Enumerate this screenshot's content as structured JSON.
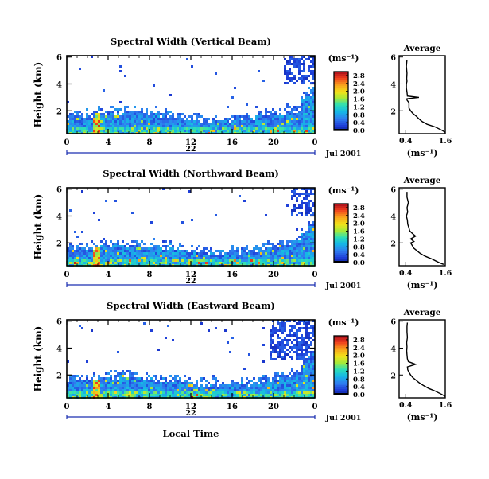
{
  "figure": {
    "xaxis_label": "Local Time",
    "date_label": "Jul 2001",
    "day_label": "22"
  },
  "chart_data": [
    {
      "type": "heatmap",
      "title": "Spectral Width (Vertical Beam)",
      "ylabel": "Height (km)",
      "x_ticks": [
        "0",
        "4",
        "8",
        "12",
        "16",
        "20",
        "0"
      ],
      "y_ticks": [
        "2",
        "4",
        "6"
      ],
      "xlim": [
        0,
        24
      ],
      "ylim": [
        0.3,
        6.1
      ],
      "colorbar": {
        "unit_label": "(ms⁻¹)",
        "ticks": [
          "0.0",
          "0.4",
          "0.8",
          "1.2",
          "1.6",
          "2.0",
          "2.4",
          "2.8"
        ],
        "range": [
          0,
          3.0
        ]
      },
      "average_profile": {
        "title": "Average",
        "xlabel": "(ms⁻¹)",
        "x_ticks": [
          "0.4",
          "1.6"
        ],
        "y_ticks": [
          "2",
          "4",
          "6"
        ],
        "xlim": [
          0.2,
          1.6
        ],
        "ylim": [
          0.3,
          6.1
        ],
        "x": [
          1.6,
          1.5,
          1.3,
          1.05,
          0.9,
          0.8,
          0.72,
          0.62,
          0.55,
          0.5,
          0.5,
          0.44,
          0.44,
          0.8,
          0.45,
          0.44,
          0.42,
          0.42,
          0.44,
          0.43,
          0.44,
          0.42,
          0.44
        ],
        "y": [
          0.4,
          0.55,
          0.8,
          1.0,
          1.2,
          1.4,
          1.6,
          1.8,
          2.0,
          2.2,
          2.6,
          2.8,
          2.9,
          3.0,
          3.1,
          3.4,
          3.7,
          4.0,
          4.2,
          4.4,
          4.8,
          5.3,
          5.8
        ]
      },
      "upper_cluster": {
        "x_start": 20.8,
        "x_end": 24,
        "y_start": 4.1,
        "y_end": 6.1
      }
    },
    {
      "type": "heatmap",
      "title": "Spectral Width (Northward Beam)",
      "ylabel": "Height (km)",
      "x_ticks": [
        "0",
        "4",
        "8",
        "12",
        "16",
        "20",
        "0"
      ],
      "y_ticks": [
        "2",
        "4",
        "6"
      ],
      "xlim": [
        0,
        24
      ],
      "ylim": [
        0.3,
        6.1
      ],
      "colorbar": {
        "unit_label": "(ms⁻¹)",
        "ticks": [
          "0.0",
          "0.4",
          "0.8",
          "1.2",
          "1.6",
          "2.0",
          "2.4",
          "2.8"
        ],
        "range": [
          0,
          3.0
        ]
      },
      "average_profile": {
        "title": "Average",
        "xlabel": "(ms⁻¹)",
        "x_ticks": [
          "0.4",
          "1.6"
        ],
        "y_ticks": [
          "2",
          "4",
          "6"
        ],
        "xlim": [
          0.2,
          1.6
        ],
        "ylim": [
          0.3,
          6.1
        ],
        "x": [
          1.55,
          1.4,
          1.2,
          1.0,
          0.85,
          0.75,
          0.65,
          0.6,
          0.55,
          0.65,
          0.55,
          0.7,
          0.6,
          0.52,
          0.5,
          0.46,
          0.45,
          0.42,
          0.46,
          0.44,
          0.48,
          0.44,
          0.44
        ],
        "y": [
          0.4,
          0.55,
          0.8,
          1.0,
          1.2,
          1.4,
          1.6,
          1.8,
          2.0,
          2.1,
          2.3,
          2.5,
          2.7,
          2.9,
          3.1,
          3.4,
          3.7,
          4.0,
          4.3,
          4.6,
          5.0,
          5.4,
          5.8
        ]
      },
      "upper_cluster": {
        "x_start": 21.5,
        "x_end": 24,
        "y_start": 4.0,
        "y_end": 6.1
      }
    },
    {
      "type": "heatmap",
      "title": "Spectral Width (Eastward Beam)",
      "ylabel": "Height (km)",
      "x_ticks": [
        "0",
        "4",
        "8",
        "12",
        "16",
        "20",
        "0"
      ],
      "y_ticks": [
        "2",
        "4",
        "6"
      ],
      "xlim": [
        0,
        24
      ],
      "ylim": [
        0.3,
        6.1
      ],
      "colorbar": {
        "unit_label": "(ms⁻¹)",
        "ticks": [
          "0.0",
          "0.4",
          "0.8",
          "1.2",
          "1.6",
          "2.0",
          "2.4",
          "2.8"
        ],
        "range": [
          0,
          3.0
        ]
      },
      "average_profile": {
        "title": "Average",
        "xlabel": "(ms⁻¹)",
        "x_ticks": [
          "0.4",
          "1.6"
        ],
        "y_ticks": [
          "2",
          "4",
          "6"
        ],
        "xlim": [
          0.2,
          1.6
        ],
        "ylim": [
          0.3,
          6.1
        ],
        "x": [
          1.6,
          1.5,
          1.3,
          1.1,
          0.95,
          0.82,
          0.72,
          0.62,
          0.55,
          0.5,
          0.46,
          0.45,
          0.7,
          0.48,
          0.45,
          0.44,
          0.43,
          0.44,
          0.43,
          0.45,
          0.44,
          0.44,
          0.45
        ],
        "y": [
          0.4,
          0.55,
          0.8,
          1.0,
          1.2,
          1.4,
          1.6,
          1.8,
          2.0,
          2.2,
          2.4,
          2.6,
          2.8,
          3.0,
          3.2,
          3.5,
          3.8,
          4.1,
          4.4,
          4.8,
          5.2,
          5.6,
          5.9
        ]
      },
      "upper_cluster": {
        "x_start": 19.5,
        "x_end": 24,
        "y_start": 3.1,
        "y_end": 6.1
      }
    }
  ]
}
